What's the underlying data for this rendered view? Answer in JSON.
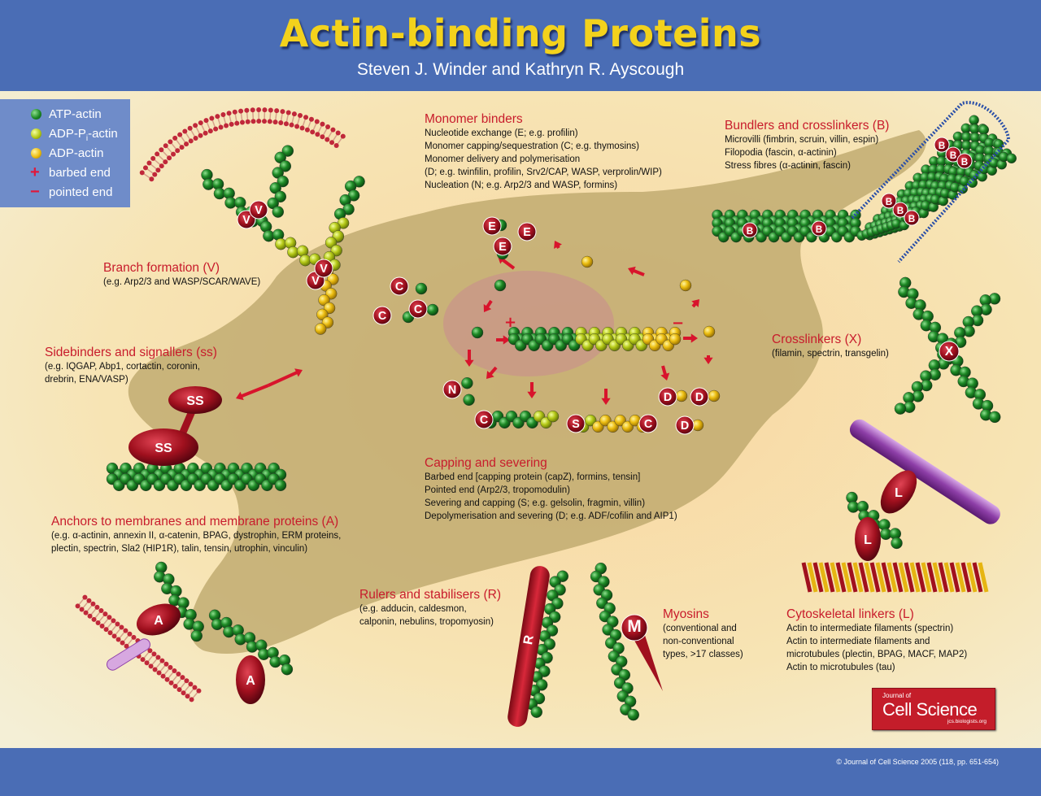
{
  "header": {
    "title": "Actin-binding Proteins",
    "authors": "Steven J. Winder and Kathryn R. Ayscough"
  },
  "legend": {
    "items": [
      {
        "label": "ATP-actin",
        "color": "#1a7a22"
      },
      {
        "label": "ADP-P",
        "sub": "i",
        "suffix": "-actin",
        "color": "#a8c21a"
      },
      {
        "label": "ADP-actin",
        "color": "#e6b512"
      },
      {
        "symbol": "+",
        "label": "barbed end",
        "color": "#e0183a"
      },
      {
        "symbol": "−",
        "label": "pointed end",
        "color": "#e0183a"
      }
    ]
  },
  "sections": {
    "monomer": {
      "heading": "Monomer binders",
      "lines": [
        "Nucleotide exchange (E; e.g. profilin)",
        "Monomer capping/sequestration (C; e.g. thymosins)",
        "Monomer delivery and polymerisation",
        "(D; e.g. twinfilin, profilin, Srv2/CAP, WASP, verprolin/WIP)",
        "Nucleation (N; e.g. Arp2/3 and WASP, formins)"
      ]
    },
    "bundlers": {
      "heading": "Bundlers and crosslinkers (B)",
      "lines": [
        "Microvilli (fimbrin, scruin, villin, espin)",
        "Filopodia (fascin, α-actinin)",
        "Stress fibres (α-actinin, fascin)"
      ]
    },
    "branch": {
      "heading": "Branch formation (V)",
      "lines": [
        "(e.g. Arp2/3 and WASP/SCAR/WAVE)"
      ]
    },
    "sidebinders": {
      "heading": "Sidebinders and signallers (ss)",
      "lines": [
        "(e.g. IQGAP, Abp1, cortactin, coronin,",
        "drebrin, ENA/VASP)"
      ]
    },
    "crosslinkers": {
      "heading": "Crosslinkers (X)",
      "lines": [
        "(filamin, spectrin, transgelin)"
      ]
    },
    "capping": {
      "heading": "Capping and severing",
      "lines": [
        "Barbed end [capping protein (capZ), formins, tensin]",
        "Pointed end (Arp2/3, tropomodulin)",
        "Severing and capping (S; e.g. gelsolin, fragmin, villin)",
        "Depolymerisation and severing (D; e.g. ADF/cofilin and AIP1)"
      ]
    },
    "anchors": {
      "heading": "Anchors to membranes and membrane proteins (A)",
      "lines": [
        "(e.g. α-actinin, annexin II, α-catenin, BPAG, dystrophin, ERM proteins,",
        "plectin, spectrin, Sla2 (HIP1R), talin, tensin, utrophin, vinculin)"
      ]
    },
    "rulers": {
      "heading": "Rulers and stabilisers (R)",
      "lines": [
        "(e.g. adducin, caldesmon,",
        "calponin, nebulins, tropomyosin)"
      ]
    },
    "myosins": {
      "heading": "Myosins",
      "lines": [
        "(conventional and",
        "non-conventional",
        "types, >17 classes)"
      ]
    },
    "cytoskeletal": {
      "heading": "Cytoskeletal linkers (L)",
      "lines": [
        "Actin to intermediate filaments (spectrin)",
        "Actin to intermediate filaments and",
        "microtubules (plectin, BPAG, MACF, MAP2)",
        "Actin to microtubules (tau)"
      ]
    }
  },
  "diagram_labels": {
    "E": "E",
    "C": "C",
    "D": "D",
    "N": "N",
    "S": "S",
    "V": "V",
    "B": "B",
    "X": "X",
    "SS": "SS",
    "A": "A",
    "R": "R",
    "M": "M",
    "L": "L",
    "plus": "+",
    "minus": "−"
  },
  "journal": {
    "small": "Journal of",
    "name": "Cell Science",
    "url": "jcs.biologists.org"
  },
  "footer": {
    "copyright": "© Journal of Cell Science 2005 (118, pp. 651-654)"
  },
  "colors": {
    "atp": "#1a7a22",
    "adppi": "#a8c21a",
    "adp": "#e6b512",
    "protein": "#a0101e",
    "arrow": "#d8142c",
    "header": "#4a6db5",
    "title": "#f3d21c"
  }
}
